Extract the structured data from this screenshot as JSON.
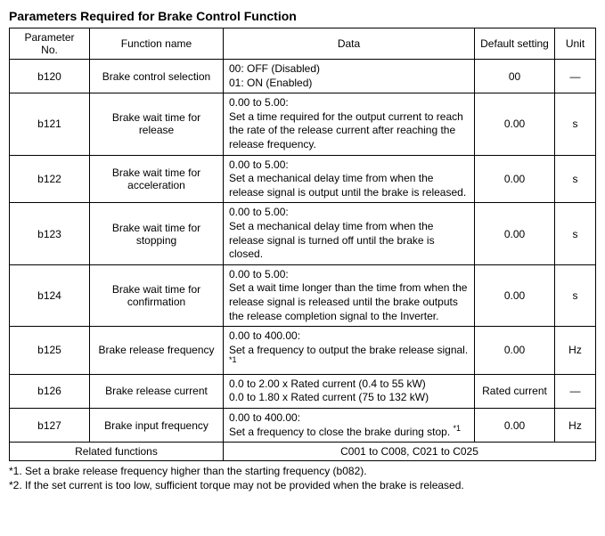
{
  "title": "Parameters Required for Brake Control Function",
  "headers": {
    "param": "Parameter No.",
    "func": "Function name",
    "data": "Data",
    "def": "Default setting",
    "unit": "Unit"
  },
  "rows": [
    {
      "param": "b120",
      "func": "Brake control selection",
      "data_l1": "00: OFF (Disabled)",
      "data_l2": "01: ON (Enabled)",
      "def": "00",
      "unit": "—",
      "sup": ""
    },
    {
      "param": "b121",
      "func": "Brake wait time for release",
      "data_l1": "0.00 to 5.00:",
      "data_l2": "Set a time required for the output current to reach the rate of the release current after reaching the release frequency.",
      "def": "0.00",
      "unit": "s",
      "sup": ""
    },
    {
      "param": "b122",
      "func": "Brake wait time for acceleration",
      "data_l1": "0.00 to 5.00:",
      "data_l2": "Set a mechanical delay time from when the release signal is output until the brake is released.",
      "def": "0.00",
      "unit": "s",
      "sup": ""
    },
    {
      "param": "b123",
      "func": "Brake wait time for stopping",
      "data_l1": "0.00 to 5.00:",
      "data_l2": "Set a mechanical delay time from when the release signal is turned off until the brake is closed.",
      "def": "0.00",
      "unit": "s",
      "sup": ""
    },
    {
      "param": "b124",
      "func": "Brake wait time for confirmation",
      "data_l1": "0.00 to 5.00:",
      "data_l2": "Set a wait time longer than the time from when the release signal is released until the brake outputs the release completion signal to the Inverter.",
      "def": "0.00",
      "unit": "s",
      "sup": ""
    },
    {
      "param": "b125",
      "func": "Brake release frequency",
      "data_l1": "0.00 to 400.00:",
      "data_l2": "Set a frequency to output the brake release signal.",
      "def": "0.00",
      "unit": "Hz",
      "sup": "*1"
    },
    {
      "param": "b126",
      "func": "Brake release current",
      "data_l1": "0.0 to 2.00 x Rated current (0.4 to 55 kW)",
      "data_l2": "0.0 to 1.80 x Rated current (75 to 132 kW)",
      "def": "Rated current",
      "unit": "—",
      "sup": ""
    },
    {
      "param": "b127",
      "func": "Brake input frequency",
      "data_l1": "0.00 to 400.00:",
      "data_l2": "Set a frequency to close the brake during stop.",
      "def": "0.00",
      "unit": "Hz",
      "sup": "*1"
    }
  ],
  "related": {
    "label": "Related functions",
    "value": "C001 to C008, C021 to C025"
  },
  "footnotes": {
    "f1": "*1. Set a brake release frequency higher than the starting frequency (b082).",
    "f2": "*2. If the set current is too low, sufficient torque may not be provided when the brake is released."
  }
}
